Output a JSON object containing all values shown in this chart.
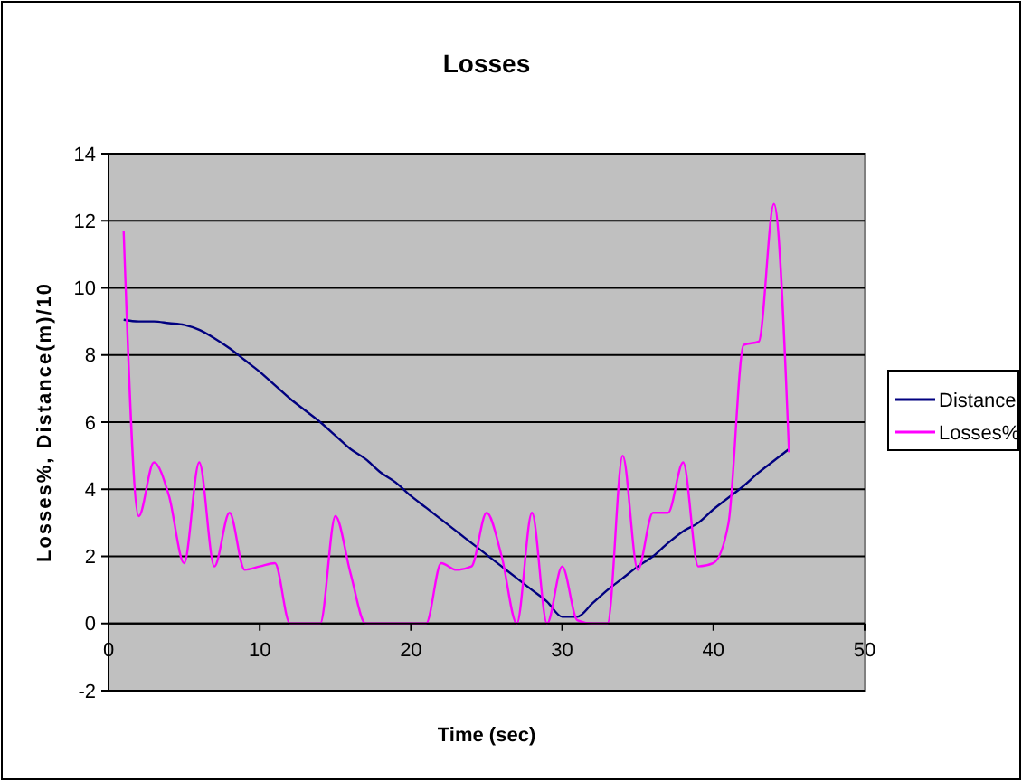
{
  "chart_data": {
    "type": "line",
    "title": "Losses",
    "xlabel": "Time (sec)",
    "ylabel": "Losses%, Distance(m)/10",
    "x": [
      1,
      2,
      3,
      4,
      5,
      6,
      7,
      8,
      9,
      10,
      11,
      12,
      13,
      14,
      15,
      16,
      17,
      18,
      19,
      20,
      21,
      22,
      23,
      24,
      25,
      26,
      27,
      28,
      29,
      30,
      31,
      32,
      33,
      34,
      35,
      36,
      37,
      38,
      39,
      40,
      41,
      42,
      43,
      44,
      45
    ],
    "series": [
      {
        "name": "Distance",
        "color": "#000080",
        "values": [
          9.05,
          9.0,
          9.0,
          8.95,
          8.9,
          8.75,
          8.5,
          8.2,
          7.85,
          7.5,
          7.1,
          6.7,
          6.35,
          6.0,
          5.6,
          5.2,
          4.9,
          4.5,
          4.2,
          3.8,
          3.45,
          3.1,
          2.75,
          2.4,
          2.05,
          1.7,
          1.35,
          1.0,
          0.65,
          0.2,
          0.2,
          0.6,
          1.0,
          1.35,
          1.7,
          2.0,
          2.4,
          2.75,
          3.0,
          3.4,
          3.75,
          4.1,
          4.5,
          4.85,
          5.2
        ]
      },
      {
        "name": "Losses%",
        "color": "#ff00ff",
        "values": [
          11.7,
          3.2,
          4.8,
          3.8,
          1.8,
          4.8,
          1.7,
          3.3,
          1.6,
          1.7,
          1.8,
          0,
          0,
          0,
          3.2,
          1.5,
          0,
          0,
          0,
          0,
          0,
          1.8,
          1.6,
          1.7,
          3.3,
          2.0,
          0,
          3.3,
          0,
          1.7,
          0.1,
          0,
          0,
          5.0,
          1.6,
          3.3,
          3.3,
          4.8,
          1.7,
          1.8,
          3.0,
          8.3,
          8.4,
          12.5,
          5.1
        ]
      }
    ],
    "xlim": [
      0,
      50
    ],
    "xticks": [
      0,
      10,
      20,
      30,
      40,
      50
    ],
    "ylim": [
      -2,
      14
    ],
    "yticks": [
      -2,
      0,
      2,
      4,
      6,
      8,
      10,
      12,
      14
    ],
    "grid": "y",
    "legend": "right",
    "marker": "none",
    "line_style": "solid"
  }
}
